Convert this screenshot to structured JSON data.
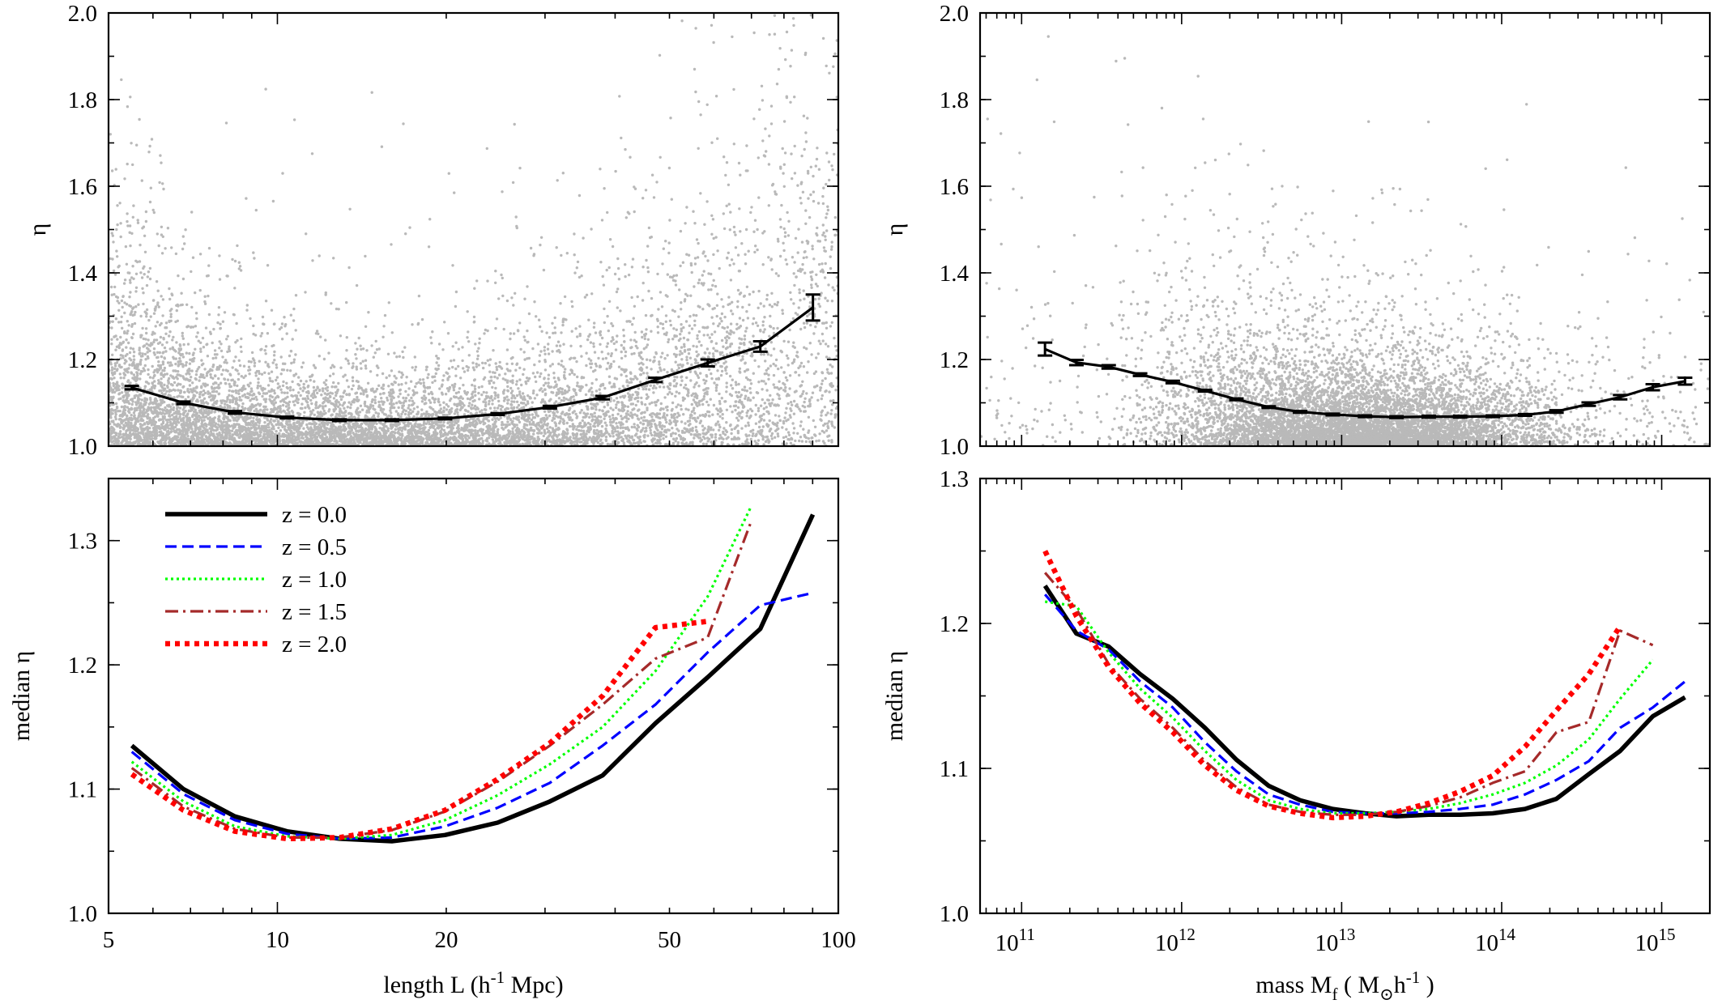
{
  "chart_data": [
    {
      "id": "top-left",
      "type": "scatter",
      "xlabel": "length L (h^-1 Mpc)",
      "xlabel_main": "length L  (h",
      "xlabel_sup": "-1",
      "xlabel_tail": " Mpc)",
      "ylabel": "η",
      "xscale": "log",
      "xlim": [
        5,
        100
      ],
      "ylim": [
        1.0,
        2.0
      ],
      "yticks": [
        "1.0",
        "1.2",
        "1.4",
        "1.6",
        "1.8",
        "2.0"
      ],
      "scatter_color": "#b9b9b9",
      "median": {
        "x": [
          5.5,
          6.8,
          8.4,
          10.4,
          12.9,
          16.0,
          19.9,
          24.7,
          30.6,
          38.0,
          47.2,
          58.5,
          72.6,
          90.1
        ],
        "y": [
          1.135,
          1.1,
          1.078,
          1.066,
          1.06,
          1.06,
          1.064,
          1.074,
          1.09,
          1.112,
          1.153,
          1.192,
          1.23,
          1.32
        ],
        "err": [
          0.004,
          0.003,
          0.003,
          0.002,
          0.002,
          0.002,
          0.002,
          0.002,
          0.003,
          0.004,
          0.005,
          0.008,
          0.012,
          0.03
        ]
      }
    },
    {
      "id": "top-right",
      "type": "scatter",
      "xlabel": "mass M_f (M_☉ h^-1)",
      "ylabel": "η",
      "xscale": "log",
      "xlim": [
        55000000000.0,
        2000000000000000.0
      ],
      "ylim": [
        1.0,
        2.0
      ],
      "yticks": [
        "1.0",
        "1.2",
        "1.4",
        "1.6",
        "1.8",
        "2.0"
      ],
      "scatter_color": "#b9b9b9",
      "median": {
        "x": [
          140000000000.0,
          220000000000.0,
          350000000000.0,
          550000000000.0,
          880000000000.0,
          1400000000000.0,
          2200000000000.0,
          3500000000000.0,
          5500000000000.0,
          8800000000000.0,
          14000000000000.0,
          22000000000000.0,
          35000000000000.0,
          55000000000000.0,
          88000000000000.0,
          140000000000000.0,
          220000000000000.0,
          350000000000000.0,
          550000000000000.0,
          880000000000000.0,
          1400000000000000.0
        ],
        "y": [
          1.224,
          1.193,
          1.183,
          1.165,
          1.148,
          1.128,
          1.108,
          1.09,
          1.079,
          1.073,
          1.069,
          1.067,
          1.068,
          1.068,
          1.069,
          1.072,
          1.08,
          1.097,
          1.113,
          1.136,
          1.15
        ],
        "err": [
          0.015,
          0.006,
          0.004,
          0.003,
          0.003,
          0.002,
          0.002,
          0.002,
          0.002,
          0.002,
          0.002,
          0.002,
          0.002,
          0.002,
          0.002,
          0.002,
          0.003,
          0.004,
          0.005,
          0.007,
          0.008
        ]
      }
    },
    {
      "id": "bottom-left",
      "type": "line",
      "xlabel": "length L (h^-1 Mpc)",
      "xlabel_main": "length L  (h",
      "xlabel_sup": "-1",
      "xlabel_tail": " Mpc)",
      "ylabel": "median η",
      "xscale": "log",
      "xlim": [
        5,
        100
      ],
      "ylim": [
        1.0,
        1.35
      ],
      "yticks": [
        "1.0",
        "1.1",
        "1.2",
        "1.3"
      ],
      "xticks": [
        "5",
        "10",
        "20",
        "50",
        "100"
      ],
      "legend_position": "top-left",
      "series": [
        {
          "name": "z = 0.0",
          "color": "#000000",
          "style": "solid",
          "x": [
            5.5,
            6.8,
            8.4,
            10.4,
            12.9,
            16.0,
            19.9,
            24.7,
            30.6,
            38.0,
            47.2,
            58.5,
            72.6,
            90.1
          ],
          "y": [
            1.135,
            1.1,
            1.078,
            1.066,
            1.06,
            1.058,
            1.063,
            1.073,
            1.09,
            1.111,
            1.153,
            1.19,
            1.229,
            1.321
          ]
        },
        {
          "name": "z = 0.5",
          "color": "#0000ff",
          "style": "dashed",
          "x": [
            5.5,
            6.8,
            8.4,
            10.4,
            12.9,
            16.0,
            19.9,
            24.7,
            30.6,
            38.0,
            47.2,
            58.5,
            72.6,
            90.1
          ],
          "y": [
            1.13,
            1.096,
            1.075,
            1.064,
            1.06,
            1.061,
            1.07,
            1.085,
            1.105,
            1.135,
            1.168,
            1.21,
            1.248,
            1.258
          ]
        },
        {
          "name": "z = 1.0",
          "color": "#00ff00",
          "style": "dotted",
          "x": [
            5.5,
            6.8,
            8.4,
            10.4,
            12.9,
            16.0,
            19.9,
            24.7,
            30.6,
            38.0,
            47.2,
            58.5,
            70.0
          ],
          "y": [
            1.122,
            1.09,
            1.07,
            1.062,
            1.06,
            1.063,
            1.075,
            1.095,
            1.12,
            1.15,
            1.195,
            1.255,
            1.328
          ]
        },
        {
          "name": "z = 1.5",
          "color": "#a52a2a",
          "style": "dashdot",
          "x": [
            5.5,
            6.8,
            8.4,
            10.4,
            12.9,
            16.0,
            19.9,
            24.7,
            30.6,
            38.0,
            47.2,
            58.5,
            70.0
          ],
          "y": [
            1.117,
            1.086,
            1.068,
            1.061,
            1.061,
            1.067,
            1.082,
            1.106,
            1.135,
            1.168,
            1.205,
            1.222,
            1.316
          ]
        },
        {
          "name": "z = 2.0",
          "color": "#ff0000",
          "style": "dotted-thick",
          "x": [
            5.5,
            6.8,
            8.4,
            10.4,
            12.9,
            16.0,
            19.9,
            24.7,
            30.6,
            38.0,
            47.2,
            58.5
          ],
          "y": [
            1.112,
            1.083,
            1.066,
            1.06,
            1.061,
            1.068,
            1.083,
            1.108,
            1.137,
            1.175,
            1.23,
            1.235
          ]
        }
      ]
    },
    {
      "id": "bottom-right",
      "type": "line",
      "xlabel": "mass M_f (M_☉ h^-1)",
      "xlabel_main": "mass M",
      "xlabel_sub": "f",
      "xlabel_mid": " ( M",
      "xlabel_sub2": "⊙",
      "xlabel_h": "h",
      "xlabel_sup": "-1",
      "xlabel_tail": " )",
      "ylabel": "median η",
      "xscale": "log",
      "xlim": [
        55000000000.0,
        2000000000000000.0
      ],
      "ylim": [
        1.0,
        1.3
      ],
      "yticks": [
        "1.0",
        "1.1",
        "1.2",
        "1.3"
      ],
      "xtick_base": "10",
      "xtick_exps": [
        "11",
        "12",
        "13",
        "14",
        "15"
      ],
      "series": [
        {
          "name": "z = 0.0",
          "color": "#000000",
          "style": "solid",
          "x": [
            140000000000.0,
            220000000000.0,
            350000000000.0,
            550000000000.0,
            880000000000.0,
            1400000000000.0,
            2200000000000.0,
            3500000000000.0,
            5500000000000.0,
            8800000000000.0,
            14000000000000.0,
            22000000000000.0,
            35000000000000.0,
            55000000000000.0,
            88000000000000.0,
            140000000000000.0,
            220000000000000.0,
            350000000000000.0,
            550000000000000.0,
            880000000000000.0,
            1400000000000000.0
          ],
          "y": [
            1.226,
            1.193,
            1.184,
            1.165,
            1.148,
            1.128,
            1.106,
            1.088,
            1.078,
            1.072,
            1.069,
            1.067,
            1.068,
            1.068,
            1.069,
            1.072,
            1.079,
            1.096,
            1.112,
            1.136,
            1.149
          ]
        },
        {
          "name": "z = 0.5",
          "color": "#0000ff",
          "style": "dashed",
          "x": [
            140000000000.0,
            220000000000.0,
            350000000000.0,
            550000000000.0,
            880000000000.0,
            1400000000000.0,
            2200000000000.0,
            3500000000000.0,
            5500000000000.0,
            8800000000000.0,
            14000000000000.0,
            22000000000000.0,
            35000000000000.0,
            55000000000000.0,
            88000000000000.0,
            140000000000000.0,
            220000000000000.0,
            350000000000000.0,
            550000000000000.0,
            880000000000000.0,
            1400000000000000.0
          ],
          "y": [
            1.22,
            1.195,
            1.182,
            1.16,
            1.142,
            1.118,
            1.098,
            1.082,
            1.075,
            1.07,
            1.069,
            1.069,
            1.07,
            1.072,
            1.075,
            1.082,
            1.092,
            1.105,
            1.128,
            1.142,
            1.16
          ]
        },
        {
          "name": "z = 1.0",
          "color": "#00ff00",
          "style": "dotted",
          "x": [
            140000000000.0,
            220000000000.0,
            350000000000.0,
            550000000000.0,
            880000000000.0,
            1400000000000.0,
            2200000000000.0,
            3500000000000.0,
            5500000000000.0,
            8800000000000.0,
            14000000000000.0,
            22000000000000.0,
            35000000000000.0,
            55000000000000.0,
            88000000000000.0,
            140000000000000.0,
            220000000000000.0,
            350000000000000.0,
            550000000000000.0,
            880000000000000.0
          ],
          "y": [
            1.215,
            1.212,
            1.18,
            1.155,
            1.135,
            1.112,
            1.092,
            1.078,
            1.072,
            1.069,
            1.069,
            1.07,
            1.072,
            1.076,
            1.082,
            1.09,
            1.102,
            1.12,
            1.148,
            1.175
          ]
        },
        {
          "name": "z = 1.5",
          "color": "#a52a2a",
          "style": "dashdot",
          "x": [
            140000000000.0,
            220000000000.0,
            350000000000.0,
            550000000000.0,
            880000000000.0,
            1400000000000.0,
            2200000000000.0,
            3500000000000.0,
            5500000000000.0,
            8800000000000.0,
            14000000000000.0,
            22000000000000.0,
            35000000000000.0,
            55000000000000.0,
            88000000000000.0,
            140000000000000.0,
            220000000000000.0,
            350000000000000.0,
            550000000000000.0,
            880000000000000.0
          ],
          "y": [
            1.235,
            1.21,
            1.172,
            1.148,
            1.128,
            1.105,
            1.087,
            1.075,
            1.07,
            1.068,
            1.068,
            1.07,
            1.074,
            1.08,
            1.09,
            1.098,
            1.125,
            1.132,
            1.195,
            1.185
          ]
        },
        {
          "name": "z = 2.0",
          "color": "#ff0000",
          "style": "dotted-thick",
          "x": [
            140000000000.0,
            220000000000.0,
            350000000000.0,
            550000000000.0,
            880000000000.0,
            1400000000000.0,
            2200000000000.0,
            3500000000000.0,
            5500000000000.0,
            8800000000000.0,
            14000000000000.0,
            22000000000000.0,
            35000000000000.0,
            55000000000000.0,
            88000000000000.0,
            140000000000000.0,
            220000000000000.0,
            350000000000000.0,
            550000000000000.0
          ],
          "y": [
            1.25,
            1.205,
            1.17,
            1.145,
            1.125,
            1.102,
            1.085,
            1.074,
            1.069,
            1.066,
            1.067,
            1.07,
            1.076,
            1.084,
            1.095,
            1.115,
            1.14,
            1.165,
            1.198
          ]
        }
      ]
    }
  ]
}
